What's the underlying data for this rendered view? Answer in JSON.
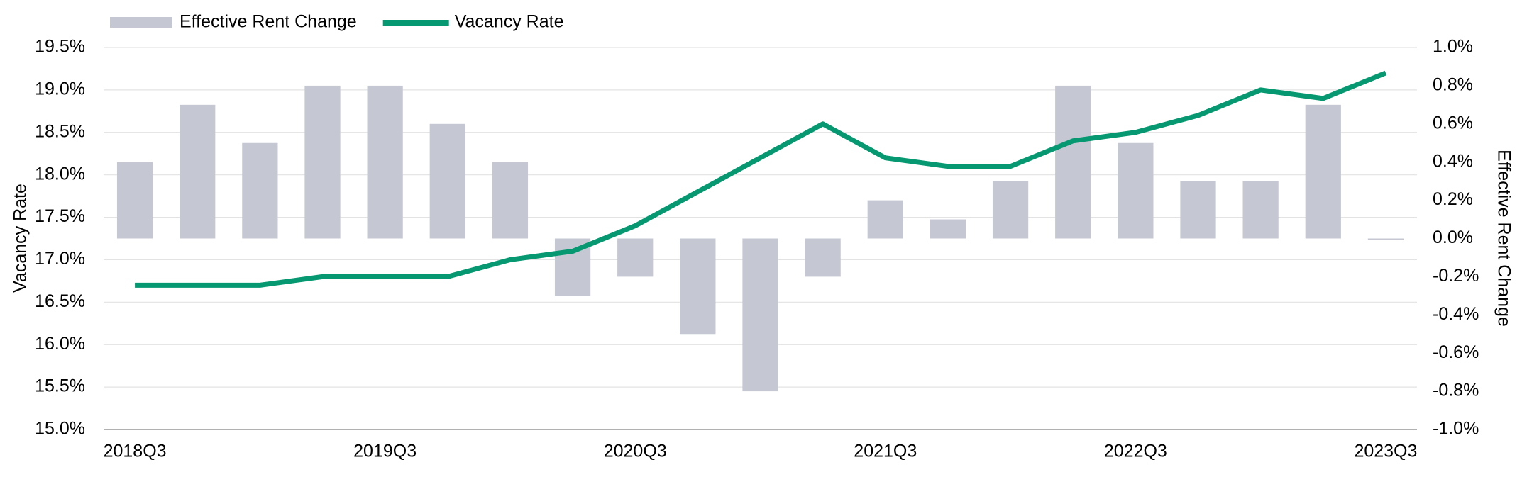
{
  "chart_data": {
    "type": "bar-line",
    "categories": [
      "2018Q3",
      null,
      null,
      null,
      "2019Q3",
      null,
      null,
      null,
      "2020Q3",
      null,
      null,
      null,
      "2021Q3",
      null,
      null,
      null,
      "2022Q3",
      null,
      null,
      null,
      "2023Q3"
    ],
    "series": [
      {
        "name": "Effective Rent Change",
        "type": "bar",
        "axis": "y2",
        "color": "#c5c8d3",
        "values": [
          0.4,
          0.7,
          0.5,
          0.8,
          0.8,
          0.6,
          0.4,
          -0.3,
          -0.2,
          -0.5,
          -0.8,
          -0.2,
          0.2,
          0.1,
          0.3,
          0.8,
          0.5,
          0.3,
          0.3,
          0.7,
          0.0
        ]
      },
      {
        "name": "Vacancy Rate",
        "type": "line",
        "axis": "y",
        "color": "#069871",
        "values": [
          16.7,
          16.7,
          16.7,
          16.8,
          16.8,
          16.8,
          17.0,
          17.1,
          17.4,
          17.8,
          18.2,
          18.6,
          18.2,
          18.1,
          18.1,
          18.4,
          18.5,
          18.7,
          19.0,
          18.9,
          19.2
        ]
      }
    ],
    "ylabel": "Vacancy Rate",
    "y2label": "Effective Rent Change",
    "ylim": [
      15.0,
      19.5
    ],
    "yticks": [
      {
        "value": 15.0,
        "label": "15.0%"
      },
      {
        "value": 15.5,
        "label": "15.5%"
      },
      {
        "value": 16.0,
        "label": "16.0%"
      },
      {
        "value": 16.5,
        "label": "16.5%"
      },
      {
        "value": 17.0,
        "label": "17.0%"
      },
      {
        "value": 17.5,
        "label": "17.5%"
      },
      {
        "value": 18.0,
        "label": "18.0%"
      },
      {
        "value": 18.5,
        "label": "18.5%"
      },
      {
        "value": 19.0,
        "label": "19.0%"
      },
      {
        "value": 19.5,
        "label": "19.5%"
      }
    ],
    "y2lim": [
      -1.0,
      1.0
    ],
    "y2ticks": [
      {
        "value": -1.0,
        "label": "-1.0%"
      },
      {
        "value": -0.8,
        "label": "-0.8%"
      },
      {
        "value": -0.6,
        "label": "-0.6%"
      },
      {
        "value": -0.4,
        "label": "-0.4%"
      },
      {
        "value": -0.2,
        "label": "-0.2%"
      },
      {
        "value": 0.0,
        "label": "0.0%"
      },
      {
        "value": 0.2,
        "label": "0.2%"
      },
      {
        "value": 0.4,
        "label": "0.4%"
      },
      {
        "value": 0.6,
        "label": "0.6%"
      },
      {
        "value": 0.8,
        "label": "0.8%"
      },
      {
        "value": 1.0,
        "label": "1.0%"
      }
    ],
    "grid": true,
    "legend": "top-left"
  }
}
